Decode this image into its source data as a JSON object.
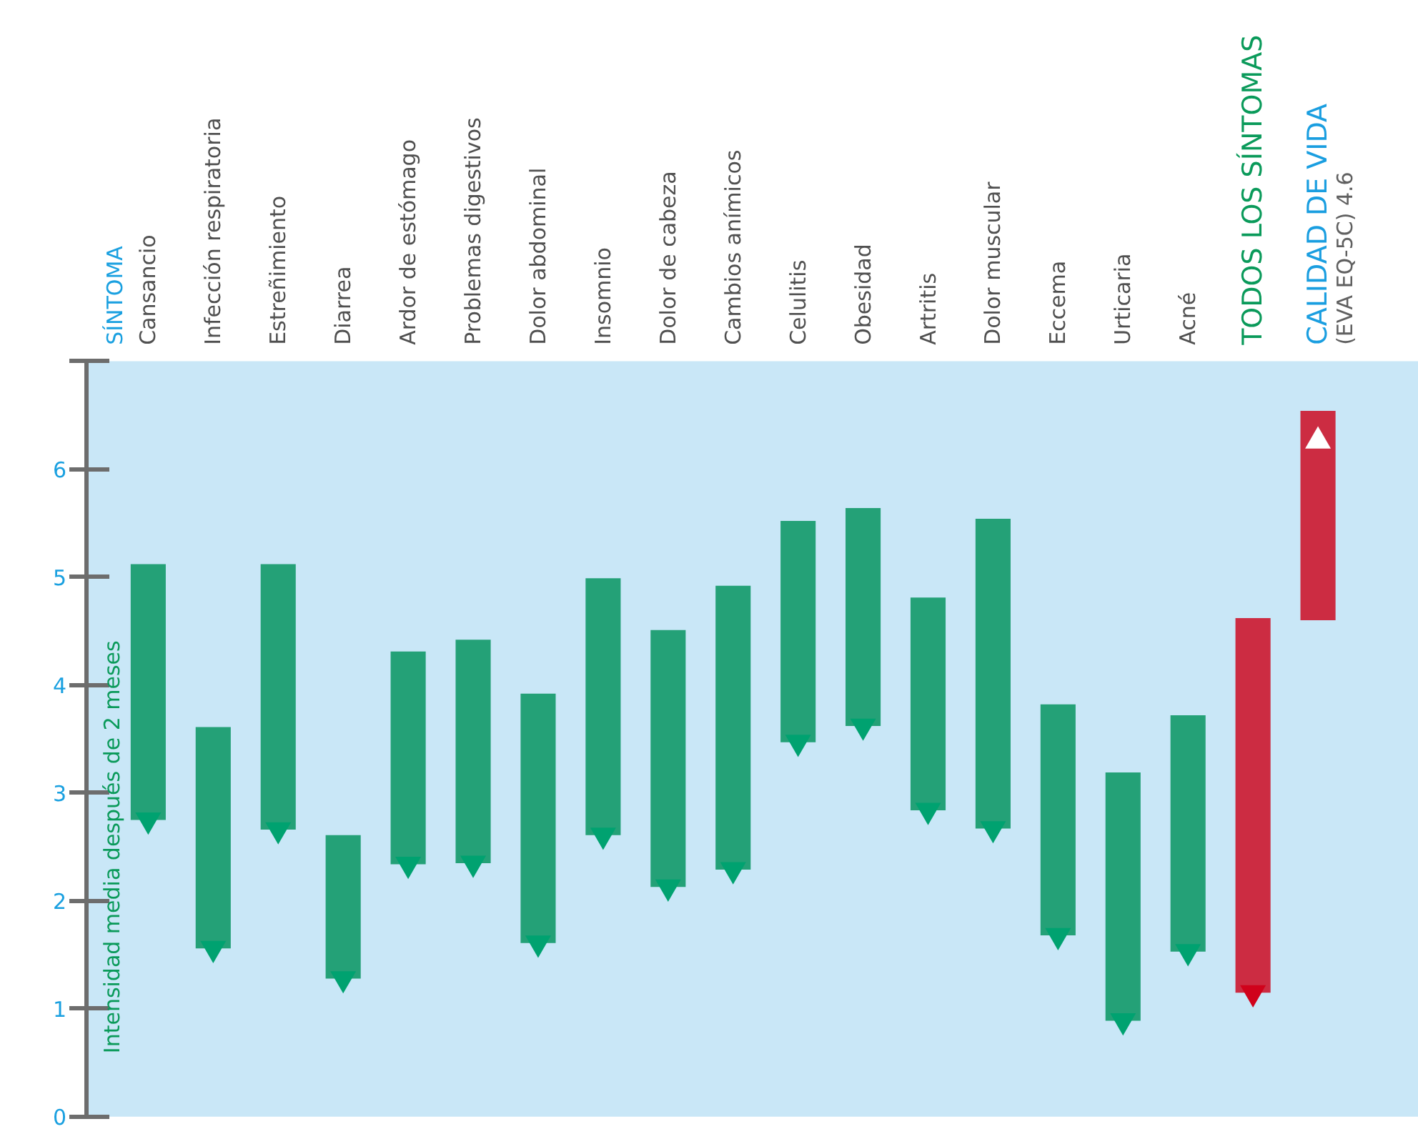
{
  "chart_data": {
    "type": "bar",
    "ylabel": "Intensidad media después de 2 meses",
    "categories": [
      "Cansancio",
      "Infección respiratoria",
      "Estreñimiento",
      "Diarrea",
      "Ardor de estómago",
      "Problemas digestivos",
      "Dolor abdominal",
      "Insomnio",
      "Dolor de cabeza",
      "Cambios anímicos",
      "Celulitis",
      "Obesidad",
      "Artritis",
      "Dolor muscular",
      "Eccema",
      "Urticaria",
      "Acné",
      "TODOS LOS SÍNTOMAS",
      "CALIDAD DE VIDA"
    ],
    "series": [
      {
        "base": [
          2.75,
          1.56,
          2.66,
          1.28,
          2.34,
          2.35,
          1.61,
          2.61,
          2.13,
          2.29,
          3.47,
          3.62,
          2.84,
          2.67,
          1.68,
          0.89,
          1.53,
          1.15,
          4.6
        ],
        "values": [
          2.37,
          2.05,
          2.46,
          1.33,
          1.97,
          2.07,
          2.31,
          2.38,
          2.38,
          2.63,
          2.05,
          2.02,
          1.97,
          2.87,
          2.14,
          2.3,
          2.19,
          3.47,
          1.94
        ],
        "colors": [
          "#079460",
          "#079460",
          "#079460",
          "#079460",
          "#079460",
          "#079460",
          "#079460",
          "#079460",
          "#079460",
          "#079460",
          "#079460",
          "#079460",
          "#079460",
          "#079460",
          "#079460",
          "#079460",
          "#079460",
          "#cc0a22",
          "#cc0a22"
        ]
      },
      {
        "type": "scatter",
        "marker": "triangle",
        "values": [
          2.75,
          1.56,
          2.66,
          1.28,
          2.34,
          2.35,
          1.61,
          2.61,
          2.13,
          2.29,
          3.47,
          3.62,
          2.84,
          2.67,
          1.68,
          0.89,
          1.53,
          1.15,
          6.26
        ],
        "colors": [
          "#00a270",
          "#00a270",
          "#00a270",
          "#00a270",
          "#00a270",
          "#00a270",
          "#00a270",
          "#00a270",
          "#00a270",
          "#00a270",
          "#00a270",
          "#00a270",
          "#00a270",
          "#00a270",
          "#00a270",
          "#00a270",
          "#00a270",
          "#d0021b",
          "#ffffff"
        ]
      }
    ],
    "annotations": [
      "SÍNTOMA",
      "(EVA EQ-5C) 4.6"
    ],
    "ylim": [
      0,
      7
    ],
    "yticks": [
      0,
      1,
      2,
      3,
      4,
      5,
      6,
      {
        "value": 7,
        "label": null
      }
    ]
  }
}
